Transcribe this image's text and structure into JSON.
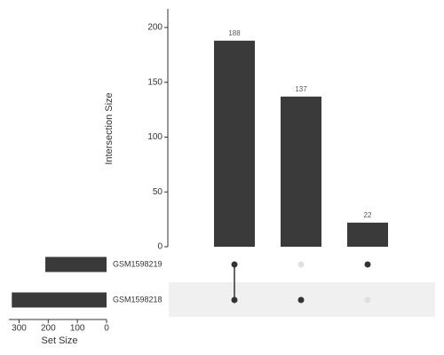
{
  "chart_data": {
    "type": "upset",
    "ylabel": "Intersection Size",
    "ylim": [
      0,
      217
    ],
    "yticks": [
      0,
      50,
      100,
      150,
      200
    ],
    "values": [
      188,
      137,
      22
    ],
    "sets": [
      "GSM1598219",
      "GSM1598218"
    ],
    "membership": [
      [
        true,
        true
      ],
      [
        false,
        true
      ],
      [
        true,
        false
      ]
    ],
    "set_sizes": [
      210,
      325
    ],
    "set_size_label": "Set Size",
    "set_size_lim": [
      0,
      335
    ],
    "set_size_ticks": [
      0,
      100,
      200,
      300
    ],
    "color": "#3a3a3a"
  }
}
